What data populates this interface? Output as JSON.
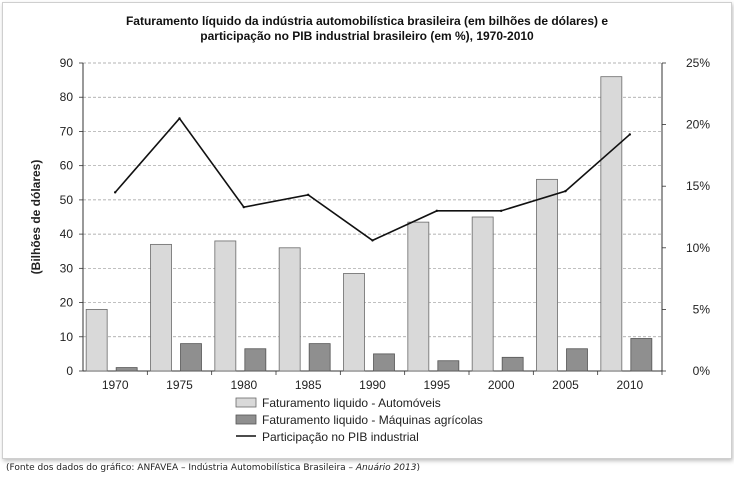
{
  "title_lines": [
    "Faturamento líquido da indústria automobilística brasileira (em bilhões de dólares) e",
    "participação no PIB industrial brasileiro (em %), 1970-2010"
  ],
  "caption": {
    "prefix": "(Fonte dos dados do gráfico: ANFAVEA – Indústria Automobilística Brasileira – ",
    "italic": "Anuário 2013",
    "suffix": ")"
  },
  "colors": {
    "automoveis": "#d9d9d9",
    "maquinas": "#8f8f8f",
    "line": "#111111",
    "grid": "#9a9a9a"
  },
  "chart_data": {
    "type": "bar",
    "title": "Faturamento líquido da indústria automobilística brasileira (em bilhões de dólares) e participação no PIB industrial brasileiro (em %), 1970-2010",
    "categories": [
      "1970",
      "1975",
      "1980",
      "1985",
      "1990",
      "1995",
      "2000",
      "2005",
      "2010"
    ],
    "series": [
      {
        "name": "Faturamento liquido - Automóveis",
        "type": "bar",
        "axis": "left",
        "values": [
          18,
          37,
          38,
          36,
          28.5,
          43.5,
          45,
          56,
          86
        ]
      },
      {
        "name": "Faturamento liquido - Máquinas agrícolas",
        "type": "bar",
        "axis": "left",
        "values": [
          1,
          8,
          6.5,
          8,
          5,
          3,
          4,
          6.5,
          9.5
        ]
      },
      {
        "name": "Participação no PIB industrial",
        "type": "line",
        "axis": "right",
        "values": [
          14.5,
          20.5,
          13.3,
          14.3,
          10.6,
          13.0,
          13.0,
          14.6,
          19.2
        ]
      }
    ],
    "ylabel": "(Bilhões de dólares)",
    "ylim": [
      0,
      90
    ],
    "yticks": [
      0,
      10,
      20,
      30,
      40,
      50,
      60,
      70,
      80,
      90
    ],
    "y2lim": [
      0,
      25
    ],
    "y2ticks": [
      "0%",
      "5%",
      "10%",
      "15%",
      "20%",
      "25%"
    ],
    "grid": true,
    "legend_position": "bottom"
  }
}
